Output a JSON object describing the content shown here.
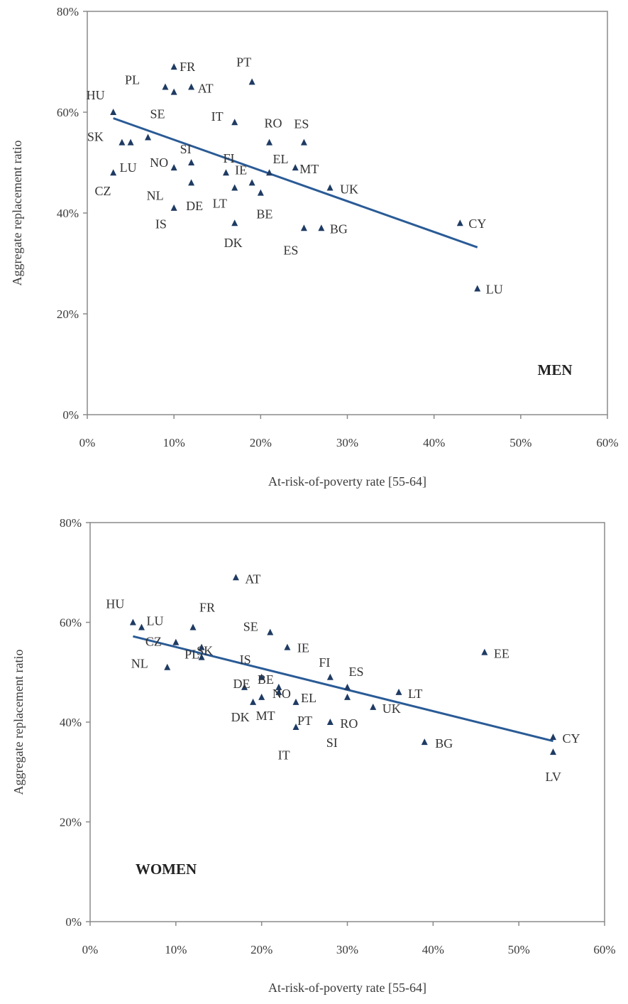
{
  "chart_data": [
    {
      "type": "scatter",
      "panel_label": "MEN",
      "xlabel": "At-risk-of-poverty rate [55-64]",
      "ylabel": "Aggregate replacement ratio",
      "xlim": [
        0,
        60
      ],
      "ylim": [
        0,
        80
      ],
      "x_ticks": [
        "0%",
        "10%",
        "20%",
        "30%",
        "40%",
        "50%",
        "60%"
      ],
      "y_ticks": [
        "0%",
        "20%",
        "40%",
        "60%",
        "80%"
      ],
      "grid": false,
      "marker": "triangle",
      "marker_color": "#1f3b63",
      "trendline": {
        "x": [
          3,
          45
        ],
        "y": [
          58.8,
          33.2
        ],
        "color": "#2a5b96"
      },
      "points": [
        {
          "label": "HU",
          "x": 3,
          "y": 60
        },
        {
          "label": "LU",
          "x": 3,
          "y": 48
        },
        {
          "label": "SK",
          "x": 4,
          "y": 54
        },
        {
          "label": "",
          "x": 5,
          "y": 54
        },
        {
          "label": "SE",
          "x": 7,
          "y": 55
        },
        {
          "label": "PL",
          "x": 9,
          "y": 65
        },
        {
          "label": "FR",
          "x": 10,
          "y": 69
        },
        {
          "label": "",
          "x": 10,
          "y": 64
        },
        {
          "label": "NO",
          "x": 10,
          "y": 49
        },
        {
          "label": "DE",
          "x": 10,
          "y": 41
        },
        {
          "label": "AT",
          "x": 12,
          "y": 65
        },
        {
          "label": "SI",
          "x": 12,
          "y": 50
        },
        {
          "label": "NL",
          "x": 12,
          "y": 46
        },
        {
          "label": "FI",
          "x": 16,
          "y": 48
        },
        {
          "label": "IT",
          "x": 17,
          "y": 58
        },
        {
          "label": "LT",
          "x": 17,
          "y": 45
        },
        {
          "label": "DK",
          "x": 17,
          "y": 38
        },
        {
          "label": "PT",
          "x": 19,
          "y": 66
        },
        {
          "label": "IE",
          "x": 19,
          "y": 46
        },
        {
          "label": "BE",
          "x": 20,
          "y": 44
        },
        {
          "label": "RO",
          "x": 21,
          "y": 54
        },
        {
          "label": "EL",
          "x": 21,
          "y": 48
        },
        {
          "label": "MT",
          "x": 24,
          "y": 49
        },
        {
          "label": "ES",
          "x": 25,
          "y": 54
        },
        {
          "label": "ES",
          "x": 25,
          "y": 37
        },
        {
          "label": "BG",
          "x": 27,
          "y": 37
        },
        {
          "label": "UK",
          "x": 28,
          "y": 45
        },
        {
          "label": "CY",
          "x": 43,
          "y": 38
        },
        {
          "label": "LU",
          "x": 45,
          "y": 25
        }
      ],
      "free_labels": [
        {
          "label": "CZ",
          "x": 1.8,
          "y": 43.5
        },
        {
          "label": "IS",
          "x": 8.5,
          "y": 37
        }
      ]
    },
    {
      "type": "scatter",
      "panel_label": "WOMEN",
      "xlabel": "At-risk-of-poverty rate [55-64]",
      "ylabel": "Aggregate replacement ratio",
      "xlim": [
        0,
        60
      ],
      "ylim": [
        0,
        80
      ],
      "x_ticks": [
        "0%",
        "10%",
        "20%",
        "30%",
        "40%",
        "50%",
        "60%"
      ],
      "y_ticks": [
        "0%",
        "20%",
        "40%",
        "60%",
        "80%"
      ],
      "grid": false,
      "marker": "triangle",
      "marker_color": "#1f3b63",
      "trendline": {
        "x": [
          5,
          54
        ],
        "y": [
          57.2,
          36.2
        ],
        "color": "#2a5b96"
      },
      "points": [
        {
          "label": "HU",
          "x": 5,
          "y": 60
        },
        {
          "label": "LU",
          "x": 6,
          "y": 59
        },
        {
          "label": "NL",
          "x": 9,
          "y": 51
        },
        {
          "label": "CZ",
          "x": 10,
          "y": 56
        },
        {
          "label": "FR",
          "x": 12,
          "y": 59
        },
        {
          "label": "SK",
          "x": 13,
          "y": 55
        },
        {
          "label": "PL",
          "x": 13,
          "y": 53
        },
        {
          "label": "AT",
          "x": 17,
          "y": 69
        },
        {
          "label": "DE",
          "x": 18,
          "y": 47
        },
        {
          "label": "DK",
          "x": 19,
          "y": 44
        },
        {
          "label": "IS",
          "x": 20,
          "y": 49
        },
        {
          "label": "MT",
          "x": 20,
          "y": 45
        },
        {
          "label": "SE",
          "x": 21,
          "y": 58
        },
        {
          "label": "BE",
          "x": 22,
          "y": 47
        },
        {
          "label": "NO",
          "x": 22,
          "y": 46
        },
        {
          "label": "IE",
          "x": 23,
          "y": 55
        },
        {
          "label": "EL",
          "x": 24,
          "y": 44
        },
        {
          "label": "PT",
          "x": 24,
          "y": 39
        },
        {
          "label": "FI",
          "x": 28,
          "y": 49
        },
        {
          "label": "RO",
          "x": 28,
          "y": 40
        },
        {
          "label": "ES",
          "x": 30,
          "y": 47
        },
        {
          "label": "",
          "x": 30,
          "y": 45
        },
        {
          "label": "UK",
          "x": 33,
          "y": 43
        },
        {
          "label": "LT",
          "x": 36,
          "y": 46
        },
        {
          "label": "BG",
          "x": 39,
          "y": 36
        },
        {
          "label": "EE",
          "x": 46,
          "y": 54
        },
        {
          "label": "CY",
          "x": 54,
          "y": 37
        },
        {
          "label": "LV",
          "x": 54,
          "y": 34
        }
      ],
      "free_labels": [
        {
          "label": "IT",
          "x": 22.6,
          "y": 32.5
        },
        {
          "label": "SI",
          "x": 28.2,
          "y": 35
        }
      ]
    }
  ]
}
